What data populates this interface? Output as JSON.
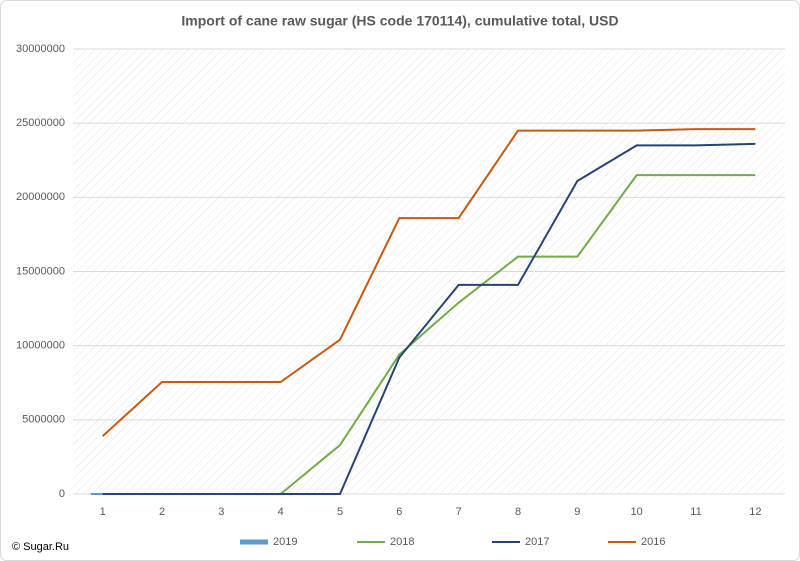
{
  "chart_data": {
    "type": "line",
    "title": "Import of cane raw sugar (HS code 170114), cumulative total, USD",
    "source": "© Sugar.Ru",
    "categories": [
      "1",
      "2",
      "3",
      "4",
      "5",
      "6",
      "7",
      "8",
      "9",
      "10",
      "11",
      "12"
    ],
    "series": [
      {
        "name": "2019",
        "color": "#5b9bd5",
        "values": [
          0,
          null,
          null,
          null,
          null,
          null,
          null,
          null,
          null,
          null,
          null,
          null
        ]
      },
      {
        "name": "2018",
        "color": "#70ad47",
        "values": [
          0,
          0,
          0,
          0,
          3300000,
          9400000,
          12900000,
          16000000,
          16000000,
          21500000,
          21500000,
          21500000
        ]
      },
      {
        "name": "2017",
        "color": "#264478",
        "values": [
          0,
          0,
          0,
          0,
          0,
          9200000,
          14100000,
          14100000,
          21100000,
          23500000,
          23500000,
          23600000
        ]
      },
      {
        "name": "2016",
        "color": "#c55a11",
        "values": [
          3900000,
          7550000,
          7550000,
          7550000,
          10400000,
          18600000,
          18600000,
          24500000,
          24500000,
          24500000,
          24600000,
          24600000
        ]
      }
    ],
    "ylim": [
      0,
      30000000
    ],
    "yticks": [
      0,
      5000000,
      10000000,
      15000000,
      20000000,
      25000000,
      30000000
    ],
    "grid": true,
    "legend": "bottom"
  }
}
